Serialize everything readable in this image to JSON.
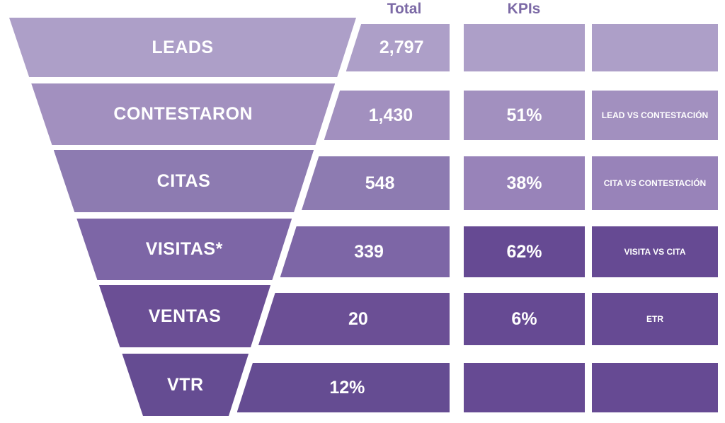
{
  "headers": {
    "total": "Total",
    "kpis": "KPIs"
  },
  "colors": {
    "header_text": "#7c6aa6",
    "rows": [
      "#ad9fc8",
      "#a290bf",
      "#8d7bb1",
      "#7d66a6",
      "#6b4f95",
      "#654c92"
    ],
    "kpi_cells": [
      "#ad9fc8",
      "#a290bf",
      "#9883b9",
      "#664a93",
      "#664a93",
      "#664a93"
    ],
    "desc_cells": [
      "#ad9fc8",
      "#a290bf",
      "#9883b9",
      "#664a93",
      "#664a93",
      "#664a93"
    ]
  },
  "rows": [
    {
      "stage": "LEADS",
      "total": "2,797",
      "kpi": "",
      "kpi_desc": ""
    },
    {
      "stage": "CONTESTARON",
      "total": "1,430",
      "kpi": "51%",
      "kpi_desc": "LEAD VS CONTESTACIÓN"
    },
    {
      "stage": "CITAS",
      "total": "548",
      "kpi": "38%",
      "kpi_desc": "CITA VS CONTESTACIÓN"
    },
    {
      "stage": "VISITAS*",
      "total": "339",
      "kpi": "62%",
      "kpi_desc": "VISITA VS CITA"
    },
    {
      "stage": "VENTAS",
      "total": "20",
      "kpi": "6%",
      "kpi_desc": "ETR"
    },
    {
      "stage": "VTR",
      "total": "12%",
      "kpi": "",
      "kpi_desc": ""
    }
  ]
}
